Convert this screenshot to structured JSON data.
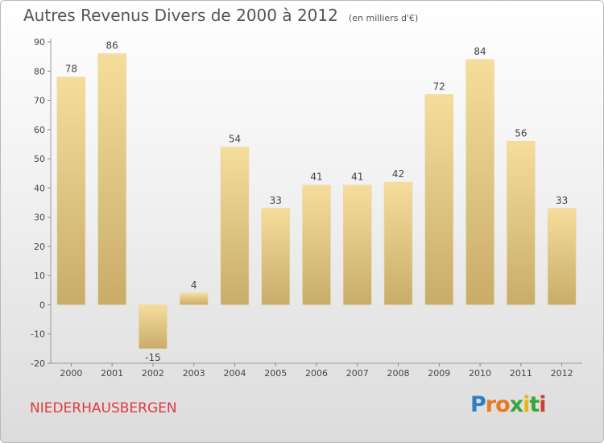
{
  "title": "Autres Revenus Divers de 2000 à 2012",
  "unit_note": "(en milliers d'€)",
  "place": "NIEDERHAUSBERGEN",
  "brand": {
    "letters": [
      "P",
      "r",
      "o",
      "x",
      "i",
      "t",
      "i"
    ],
    "colors": [
      "#2f7fc1",
      "#e67a1c",
      "#e67a1c",
      "#3aa63a",
      "#e7b418",
      "#3aa63a",
      "#d63b2f"
    ]
  },
  "colors": {
    "bar_light": "#f6dd9c",
    "bar_dark": "#c8ad69",
    "place": "#e0393e"
  },
  "chart_data": {
    "type": "bar",
    "title": "Autres Revenus Divers de 2000 à 2012",
    "categories": [
      "2000",
      "2001",
      "2002",
      "2003",
      "2004",
      "2005",
      "2006",
      "2007",
      "2008",
      "2009",
      "2010",
      "2011",
      "2012"
    ],
    "values": [
      78,
      86,
      -15,
      4,
      54,
      33,
      41,
      41,
      42,
      72,
      84,
      56,
      33
    ],
    "ylim": [
      -20,
      90
    ],
    "yticks": [
      -20,
      -10,
      0,
      10,
      20,
      30,
      40,
      50,
      60,
      70,
      80,
      90
    ],
    "grid": false,
    "legend": "none"
  }
}
